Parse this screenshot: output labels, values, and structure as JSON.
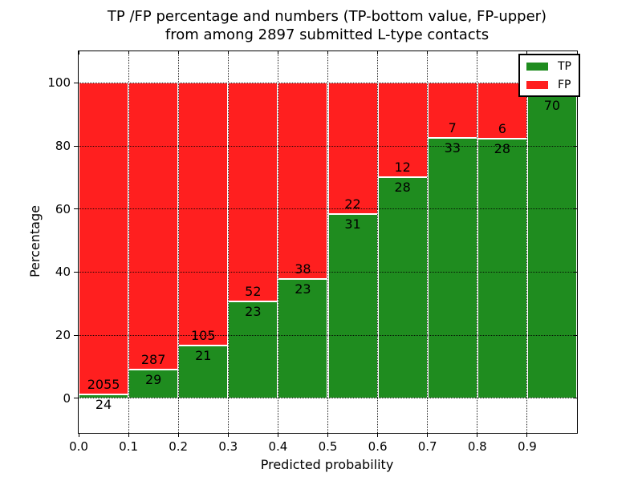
{
  "chart_data": {
    "type": "bar",
    "stacked": true,
    "units": "percent",
    "title_lines": [
      "TP /FP percentage and numbers (TP-bottom value, FP-upper)",
      "from among 2897 submitted L-type contacts"
    ],
    "total_submitted_contacts": 2897,
    "xlabel": "Predicted probability",
    "ylabel": "Percentage",
    "xlim": [
      0.0,
      1.0
    ],
    "ylim": [
      -11,
      110
    ],
    "bin_width": 0.1,
    "x_ticks": [
      0.0,
      0.1,
      0.2,
      0.3,
      0.4,
      0.5,
      0.6,
      0.7,
      0.8,
      0.9
    ],
    "x_tick_labels": [
      "0.0",
      "0.1",
      "0.2",
      "0.3",
      "0.4",
      "0.5",
      "0.6",
      "0.7",
      "0.8",
      "0.9"
    ],
    "y_ticks": [
      0,
      20,
      40,
      60,
      80,
      100
    ],
    "y_tick_labels": [
      "0",
      "20",
      "40",
      "60",
      "80",
      "100"
    ],
    "grid": {
      "on": true,
      "style": "dotted",
      "color": "#000000",
      "drawn_over_bars": true
    },
    "legend": {
      "position": "upper right"
    },
    "series": [
      {
        "name": "TP",
        "color": "#1f8c1f",
        "counts": [
          24,
          29,
          21,
          23,
          23,
          31,
          28,
          33,
          28,
          70
        ],
        "percent": [
          1.2,
          9.2,
          16.7,
          30.7,
          37.7,
          58.5,
          70.0,
          82.5,
          82.4,
          95.9
        ]
      },
      {
        "name": "FP",
        "color": "#ff1f1f",
        "counts": [
          2055,
          287,
          105,
          52,
          38,
          22,
          12,
          7,
          6,
          null
        ],
        "percent": [
          98.8,
          90.8,
          83.3,
          69.3,
          62.3,
          41.5,
          30.0,
          17.5,
          17.6,
          4.1
        ]
      }
    ],
    "colors": {
      "bar_edge": "#ffffff",
      "axes": "#000000",
      "background": "#ffffff"
    }
  }
}
